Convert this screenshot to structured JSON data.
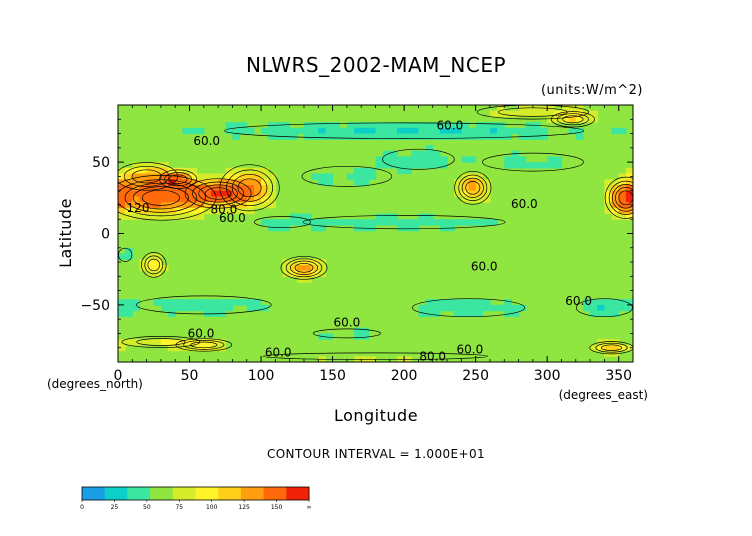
{
  "chart_data": {
    "type": "heatmap",
    "title": "NLWRS_2002-MAM_NCEP",
    "units": "(units:W/m^2)",
    "xlabel": "Longitude",
    "ylabel": "Latitude",
    "x_unit_label": "(degrees_east)",
    "y_unit_label": "(degrees_north)",
    "xlim": [
      0,
      360
    ],
    "ylim": [
      -90,
      90
    ],
    "x_ticks": [
      0,
      50,
      100,
      150,
      200,
      250,
      300,
      350
    ],
    "x_tick_labels": [
      "0",
      "50",
      "100",
      "150",
      "200",
      "250",
      "300",
      "350"
    ],
    "y_ticks": [
      50,
      0,
      -50
    ],
    "y_tick_labels": [
      "50",
      "0",
      "−50"
    ],
    "contour_interval_text": "CONTOUR INTERVAL = 1.000E+01",
    "colorbar": {
      "labels": [
        "0",
        "25",
        "50",
        "75",
        "100",
        "125",
        "150",
        "∞"
      ],
      "label_values": [
        0,
        25,
        50,
        75,
        100,
        125,
        150,
        175
      ],
      "colors": [
        "#1a9ee8",
        "#0ad0c8",
        "#3ae6a0",
        "#8fe640",
        "#d4ec2a",
        "#fff32a",
        "#ffcf1a",
        "#ff9f10",
        "#ff6a0a",
        "#f22208"
      ]
    },
    "background_level": 60,
    "background_color": "#8fe640",
    "regions": [
      {
        "lon": 30,
        "lat": 25,
        "rlon": 32,
        "rlat": 13,
        "peak": 135
      },
      {
        "lon": 70,
        "lat": 28,
        "rlon": 20,
        "rlat": 9,
        "peak": 125
      },
      {
        "lon": 92,
        "lat": 32,
        "rlon": 18,
        "rlat": 14,
        "peak": 115
      },
      {
        "lon": 20,
        "lat": 40,
        "rlon": 20,
        "rlat": 9,
        "peak": 100
      },
      {
        "lon": 42,
        "lat": 38,
        "rlon": 12,
        "rlat": 6,
        "peak": 105
      },
      {
        "lon": 355,
        "lat": 25,
        "rlon": 12,
        "rlat": 12,
        "peak": 130
      },
      {
        "lon": 248,
        "lat": 32,
        "rlon": 11,
        "rlat": 10,
        "peak": 118
      },
      {
        "lon": 130,
        "lat": -24,
        "rlon": 14,
        "rlat": 7,
        "peak": 118
      },
      {
        "lon": 25,
        "lat": -22,
        "rlon": 8,
        "rlat": 8,
        "peak": 102
      },
      {
        "lon": 290,
        "lat": 85,
        "rlon": 40,
        "rlat": 5,
        "peak": 88
      },
      {
        "lon": 318,
        "lat": 80,
        "rlon": 14,
        "rlat": 5,
        "peak": 100
      },
      {
        "lon": 30,
        "lat": -76,
        "rlon": 28,
        "rlat": 4,
        "peak": 88
      },
      {
        "lon": 60,
        "lat": -78,
        "rlon": 18,
        "rlat": 4,
        "peak": 98
      },
      {
        "lon": 345,
        "lat": -80,
        "rlon": 14,
        "rlat": 4,
        "peak": 108
      },
      {
        "lon": 180,
        "lat": -86,
        "rlon": 100,
        "rlat": 3,
        "peak": 82
      },
      {
        "lon": 200,
        "lat": 72,
        "rlon": 160,
        "rlat": 7,
        "peak": 40
      },
      {
        "lon": 210,
        "lat": 52,
        "rlon": 32,
        "rlat": 9,
        "peak": 45
      },
      {
        "lon": 160,
        "lat": 40,
        "rlon": 40,
        "rlat": 9,
        "peak": 48
      },
      {
        "lon": 290,
        "lat": 50,
        "rlon": 45,
        "rlat": 8,
        "peak": 48
      },
      {
        "lon": 200,
        "lat": 8,
        "rlon": 90,
        "rlat": 6,
        "peak": 45
      },
      {
        "lon": 115,
        "lat": 8,
        "rlon": 25,
        "rlat": 5,
        "peak": 47
      },
      {
        "lon": 60,
        "lat": -50,
        "rlon": 60,
        "rlat": 8,
        "peak": 45
      },
      {
        "lon": 245,
        "lat": -52,
        "rlon": 50,
        "rlat": 8,
        "peak": 44
      },
      {
        "lon": 340,
        "lat": -52,
        "rlon": 25,
        "rlat": 8,
        "peak": 45
      },
      {
        "lon": 160,
        "lat": -70,
        "rlon": 30,
        "rlat": 4,
        "peak": 47
      },
      {
        "lon": 5,
        "lat": -15,
        "rlon": 6,
        "rlat": 6,
        "peak": 47
      }
    ],
    "contour_labels": [
      {
        "text": "60.0",
        "lon": 62,
        "lat": 62
      },
      {
        "text": "60.0",
        "lon": 232,
        "lat": 73
      },
      {
        "text": "60.0",
        "lon": 284,
        "lat": 18
      },
      {
        "text": "80.0",
        "lon": 74,
        "lat": 14
      },
      {
        "text": "60.0",
        "lon": 80,
        "lat": 8
      },
      {
        "text": "120",
        "lon": 14,
        "lat": 15
      },
      {
        "text": "60.0",
        "lon": 256,
        "lat": -26
      },
      {
        "text": "60.0",
        "lon": 322,
        "lat": -50
      },
      {
        "text": "60.0",
        "lon": 160,
        "lat": -65
      },
      {
        "text": "60.0",
        "lon": 58,
        "lat": -73
      },
      {
        "text": "60.0",
        "lon": 112,
        "lat": -86
      },
      {
        "text": "80.0",
        "lon": 220,
        "lat": -89
      },
      {
        "text": "60.0",
        "lon": 246,
        "lat": -84
      }
    ]
  }
}
